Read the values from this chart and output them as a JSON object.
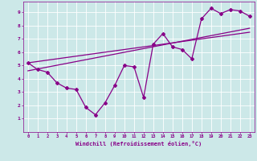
{
  "background_color": "#cce8e8",
  "grid_color": "#aadddd",
  "line_color": "#880088",
  "xlabel": "Windchill (Refroidissement éolien,°C)",
  "xlim": [
    -0.5,
    23.5
  ],
  "ylim": [
    0,
    9.8
  ],
  "xticks": [
    0,
    1,
    2,
    3,
    4,
    5,
    6,
    7,
    8,
    9,
    10,
    11,
    12,
    13,
    14,
    15,
    16,
    17,
    18,
    19,
    20,
    21,
    22,
    23
  ],
  "yticks": [
    1,
    2,
    3,
    4,
    5,
    6,
    7,
    8,
    9
  ],
  "series1_x": [
    0,
    1,
    2,
    3,
    4,
    5,
    6,
    7,
    8,
    9,
    10,
    11,
    12,
    13,
    14,
    15,
    16,
    17,
    18,
    19,
    20,
    21,
    22,
    23
  ],
  "series1_y": [
    5.2,
    4.7,
    4.5,
    3.7,
    3.3,
    3.2,
    1.85,
    1.3,
    2.2,
    3.5,
    5.0,
    4.9,
    2.6,
    6.6,
    7.4,
    6.4,
    6.2,
    5.5,
    8.5,
    9.3,
    8.9,
    9.2,
    9.1,
    8.7
  ],
  "series2_x": [
    0,
    23
  ],
  "series2_y": [
    4.6,
    7.8
  ],
  "series3_x": [
    0,
    23
  ],
  "series3_y": [
    5.2,
    7.5
  ]
}
